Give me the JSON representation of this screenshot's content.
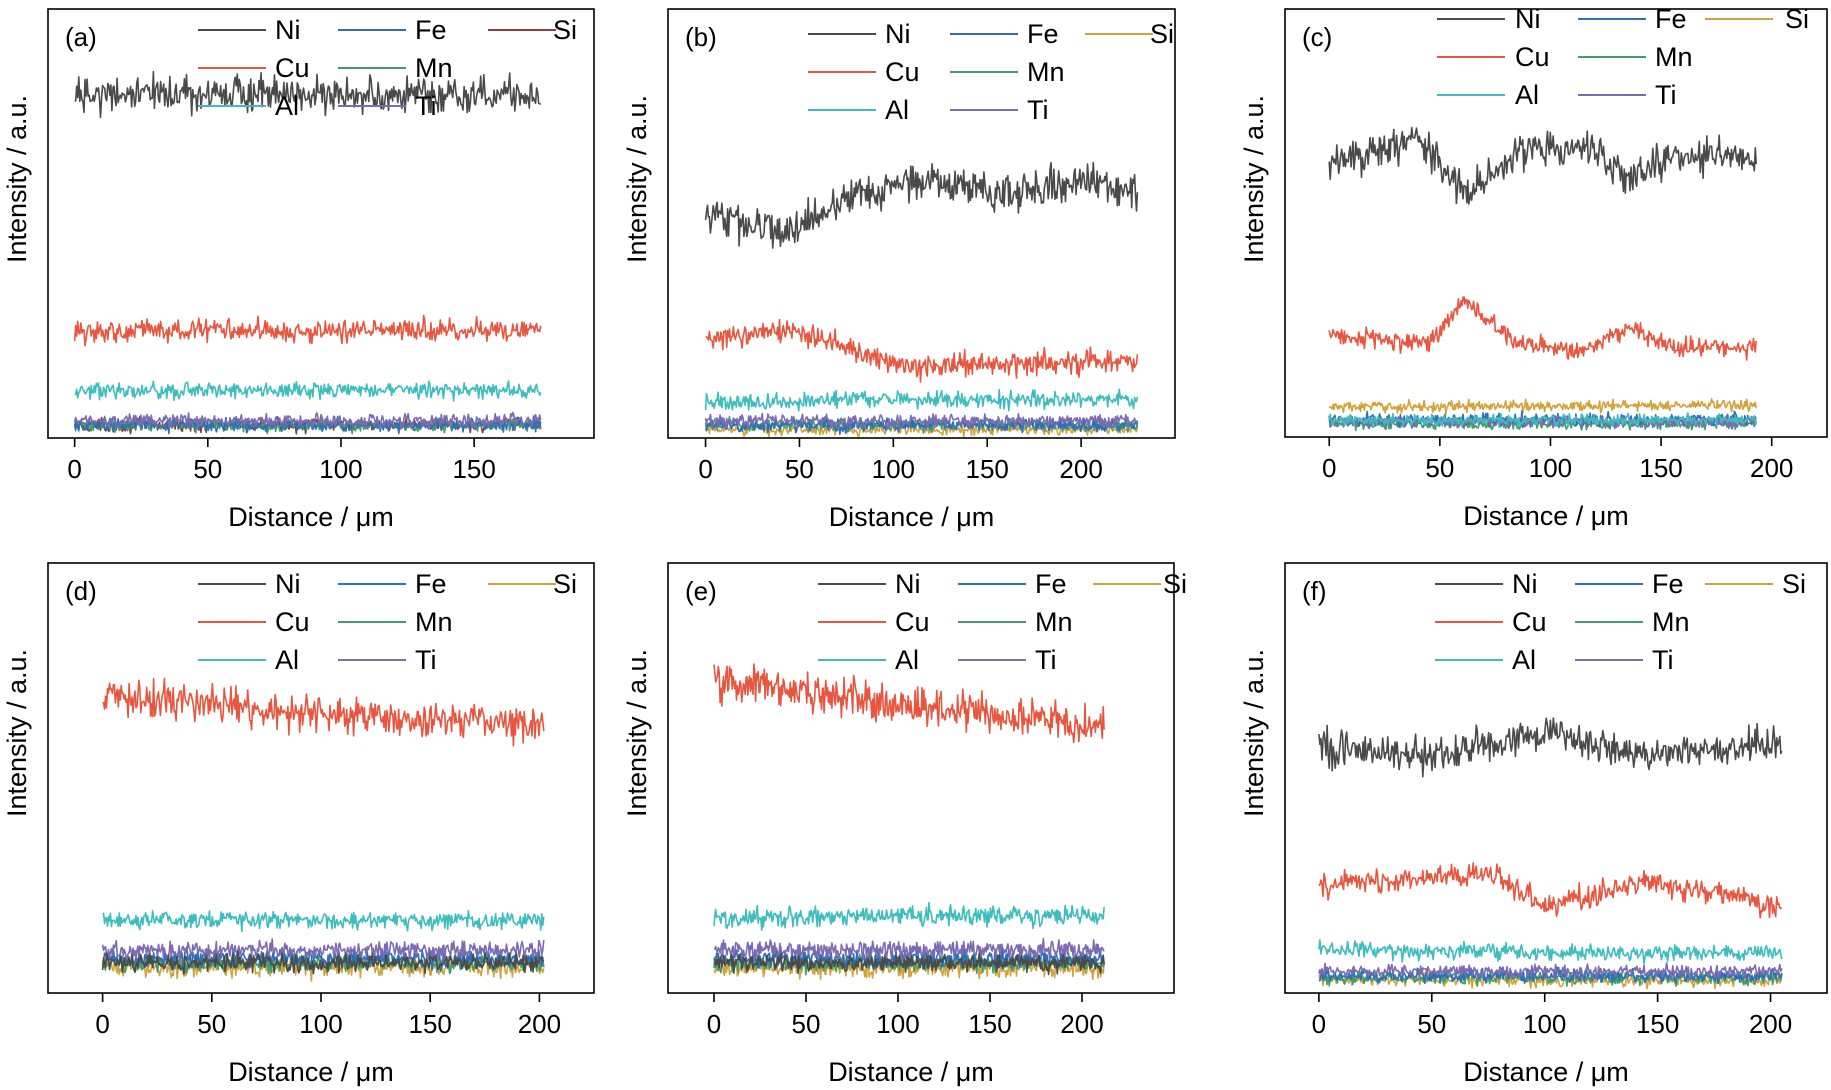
{
  "figure": {
    "colors": {
      "Ni": "#4a4a4a",
      "Fe": "#2e6fb8",
      "Si_a": "#8c3a3a",
      "Si": "#d1a33a",
      "Cu": "#e8563f",
      "Mn": "#3f9e6b",
      "Al": "#3dbdbd",
      "Ti": "#7b6bb3"
    },
    "xlabel": "Distance / μm",
    "ylabel": "Intensity / a.u.",
    "legend_labels": [
      "Ni",
      "Fe",
      "Si",
      "Cu",
      "Mn",
      "Al",
      "Ti"
    ]
  },
  "chart_data": [
    {
      "type": "line",
      "panel": "(a)",
      "xlabel": "Distance / μm",
      "ylabel": "Intensity / a.u.",
      "xlim": [
        -10,
        195
      ],
      "xticks": [
        0,
        50,
        100,
        150
      ],
      "xmax_data": 175,
      "ylim": [
        0,
        100
      ],
      "y_ticks_shown": false,
      "grid": false,
      "si_color": "#8c3a3a",
      "series": [
        {
          "name": "Ni",
          "profile": [
            [
              0,
              80
            ],
            [
              175,
              80
            ]
          ],
          "noise": 3.2
        },
        {
          "name": "Fe",
          "profile": [
            [
              0,
              3
            ],
            [
              175,
              3
            ]
          ],
          "noise": 1.2
        },
        {
          "name": "Si",
          "profile": [
            [
              0,
              3
            ],
            [
              175,
              3
            ]
          ],
          "noise": 1.2
        },
        {
          "name": "Cu",
          "profile": [
            [
              0,
              25
            ],
            [
              175,
              25
            ]
          ],
          "noise": 2.0
        },
        {
          "name": "Mn",
          "profile": [
            [
              0,
              3
            ],
            [
              175,
              3
            ]
          ],
          "noise": 1.2
        },
        {
          "name": "Al",
          "profile": [
            [
              0,
              11
            ],
            [
              175,
              11
            ]
          ],
          "noise": 1.5
        },
        {
          "name": "Ti",
          "profile": [
            [
              0,
              4
            ],
            [
              175,
              4
            ]
          ],
          "noise": 1.2
        }
      ]
    },
    {
      "type": "line",
      "panel": "(b)",
      "xlabel": "Distance / μm",
      "ylabel": "Intensity / a.u.",
      "xlim": [
        -20,
        250
      ],
      "xticks": [
        0,
        50,
        100,
        150,
        200
      ],
      "xmax_data": 230,
      "ylim": [
        0,
        100
      ],
      "y_ticks_shown": false,
      "grid": false,
      "series": [
        {
          "name": "Ni",
          "profile": [
            [
              0,
              53
            ],
            [
              40,
              47
            ],
            [
              80,
              57
            ],
            [
              120,
              60
            ],
            [
              160,
              57
            ],
            [
              200,
              60
            ],
            [
              230,
              57
            ]
          ],
          "noise": 3.5
        },
        {
          "name": "Fe",
          "profile": [
            [
              0,
              3
            ],
            [
              230,
              3
            ]
          ],
          "noise": 1.2
        },
        {
          "name": "Si",
          "profile": [
            [
              0,
              2
            ],
            [
              230,
              2
            ]
          ],
          "noise": 1.0
        },
        {
          "name": "Cu",
          "profile": [
            [
              0,
              23
            ],
            [
              50,
              25
            ],
            [
              100,
              17
            ],
            [
              150,
              17
            ],
            [
              230,
              18
            ]
          ],
          "noise": 2.2
        },
        {
          "name": "Mn",
          "profile": [
            [
              0,
              3
            ],
            [
              230,
              3
            ]
          ],
          "noise": 1.2
        },
        {
          "name": "Al",
          "profile": [
            [
              0,
              8
            ],
            [
              100,
              9
            ],
            [
              230,
              9
            ]
          ],
          "noise": 1.5
        },
        {
          "name": "Ti",
          "profile": [
            [
              0,
              4
            ],
            [
              230,
              4
            ]
          ],
          "noise": 1.2
        }
      ]
    },
    {
      "type": "line",
      "panel": "(c)",
      "xlabel": "Distance / μm",
      "ylabel": "Intensity / a.u.",
      "xlim": [
        -20,
        225
      ],
      "xticks": [
        0,
        50,
        100,
        150,
        200
      ],
      "xmax_data": 193,
      "ylim": [
        0,
        100
      ],
      "y_ticks_shown": false,
      "grid": false,
      "series": [
        {
          "name": "Ni",
          "profile": [
            [
              0,
              63
            ],
            [
              40,
              70
            ],
            [
              62,
              57
            ],
            [
              85,
              66
            ],
            [
              115,
              69
            ],
            [
              135,
              60
            ],
            [
              155,
              66
            ],
            [
              193,
              65
            ]
          ],
          "noise": 3.2
        },
        {
          "name": "Fe",
          "profile": [
            [
              0,
              4
            ],
            [
              193,
              4
            ]
          ],
          "noise": 1.2
        },
        {
          "name": "Si",
          "profile": [
            [
              0,
              7
            ],
            [
              193,
              7.5
            ]
          ],
          "noise": 1.0
        },
        {
          "name": "Cu",
          "profile": [
            [
              0,
              24
            ],
            [
              45,
              22
            ],
            [
              62,
              32
            ],
            [
              85,
              22
            ],
            [
              115,
              20
            ],
            [
              135,
              26
            ],
            [
              155,
              21
            ],
            [
              193,
              21
            ]
          ],
          "noise": 1.8
        },
        {
          "name": "Mn",
          "profile": [
            [
              0,
              3
            ],
            [
              193,
              3
            ]
          ],
          "noise": 1.0
        },
        {
          "name": "Al",
          "profile": [
            [
              0,
              4
            ],
            [
              193,
              4
            ]
          ],
          "noise": 1.0
        },
        {
          "name": "Ti",
          "profile": [
            [
              0,
              3.5
            ],
            [
              193,
              3.5
            ]
          ],
          "noise": 1.0
        }
      ]
    },
    {
      "type": "line",
      "panel": "(d)",
      "xlabel": "Distance / μm",
      "ylabel": "Intensity / a.u.",
      "xlim": [
        -25,
        225
      ],
      "xticks": [
        0,
        50,
        100,
        150,
        200
      ],
      "xmax_data": 202,
      "ylim": [
        0,
        100
      ],
      "y_ticks_shown": false,
      "grid": false,
      "series": [
        {
          "name": "Ni",
          "profile": [
            [
              0,
              7
            ],
            [
              202,
              7
            ]
          ],
          "noise": 1.6
        },
        {
          "name": "Fe",
          "profile": [
            [
              0,
              8
            ],
            [
              202,
              8
            ]
          ],
          "noise": 1.6
        },
        {
          "name": "Si",
          "profile": [
            [
              0,
              6
            ],
            [
              202,
              6
            ]
          ],
          "noise": 1.8
        },
        {
          "name": "Cu",
          "profile": [
            [
              0,
              69
            ],
            [
              100,
              65
            ],
            [
              202,
              62
            ]
          ],
          "noise": 3.2
        },
        {
          "name": "Mn",
          "profile": [
            [
              0,
              7
            ],
            [
              202,
              7
            ]
          ],
          "noise": 1.6
        },
        {
          "name": "Al",
          "profile": [
            [
              0,
              17
            ],
            [
              202,
              17
            ]
          ],
          "noise": 1.6
        },
        {
          "name": "Ti",
          "profile": [
            [
              0,
              10
            ],
            [
              202,
              10
            ]
          ],
          "noise": 1.6
        }
      ]
    },
    {
      "type": "line",
      "panel": "(e)",
      "xlabel": "Distance / μm",
      "ylabel": "Intensity / a.u.",
      "xlim": [
        -25,
        250
      ],
      "xticks": [
        0,
        50,
        100,
        150,
        200
      ],
      "xmax_data": 212,
      "ylim": [
        0,
        100
      ],
      "y_ticks_shown": false,
      "grid": false,
      "series": [
        {
          "name": "Ni",
          "profile": [
            [
              0,
              7
            ],
            [
              212,
              7
            ]
          ],
          "noise": 1.6
        },
        {
          "name": "Fe",
          "profile": [
            [
              0,
              8
            ],
            [
              212,
              8
            ]
          ],
          "noise": 1.6
        },
        {
          "name": "Si",
          "profile": [
            [
              0,
              6
            ],
            [
              212,
              6
            ]
          ],
          "noise": 1.8
        },
        {
          "name": "Cu",
          "profile": [
            [
              0,
              73
            ],
            [
              100,
              67
            ],
            [
              212,
              62
            ]
          ],
          "noise": 3.4
        },
        {
          "name": "Mn",
          "profile": [
            [
              0,
              7
            ],
            [
              212,
              7
            ]
          ],
          "noise": 1.6
        },
        {
          "name": "Al",
          "profile": [
            [
              0,
              17
            ],
            [
              100,
              18
            ],
            [
              212,
              18
            ]
          ],
          "noise": 1.8
        },
        {
          "name": "Ti",
          "profile": [
            [
              0,
              10
            ],
            [
              212,
              10
            ]
          ],
          "noise": 1.6
        }
      ]
    },
    {
      "type": "line",
      "panel": "(f)",
      "xlabel": "Distance / μm",
      "ylabel": "Intensity / a.u.",
      "xlim": [
        -15,
        225
      ],
      "xticks": [
        0,
        50,
        100,
        150,
        200
      ],
      "xmax_data": 205,
      "ylim": [
        0,
        100
      ],
      "y_ticks_shown": false,
      "grid": false,
      "series": [
        {
          "name": "Ni",
          "profile": [
            [
              0,
              57
            ],
            [
              50,
              55
            ],
            [
              100,
              60
            ],
            [
              150,
              55
            ],
            [
              205,
              58
            ]
          ],
          "noise": 3.0
        },
        {
          "name": "Fe",
          "profile": [
            [
              0,
              4
            ],
            [
              205,
              4
            ]
          ],
          "noise": 1.2
        },
        {
          "name": "Si",
          "profile": [
            [
              0,
              3
            ],
            [
              205,
              3
            ]
          ],
          "noise": 1.2
        },
        {
          "name": "Cu",
          "profile": [
            [
              0,
              25
            ],
            [
              75,
              28
            ],
            [
              100,
              20
            ],
            [
              145,
              26
            ],
            [
              205,
              20
            ]
          ],
          "noise": 2.2
        },
        {
          "name": "Mn",
          "profile": [
            [
              0,
              3.5
            ],
            [
              205,
              3.5
            ]
          ],
          "noise": 1.2
        },
        {
          "name": "Al",
          "profile": [
            [
              0,
              10
            ],
            [
              205,
              9
            ]
          ],
          "noise": 1.5
        },
        {
          "name": "Ti",
          "profile": [
            [
              0,
              5
            ],
            [
              205,
              5
            ]
          ],
          "noise": 1.2
        }
      ]
    }
  ]
}
